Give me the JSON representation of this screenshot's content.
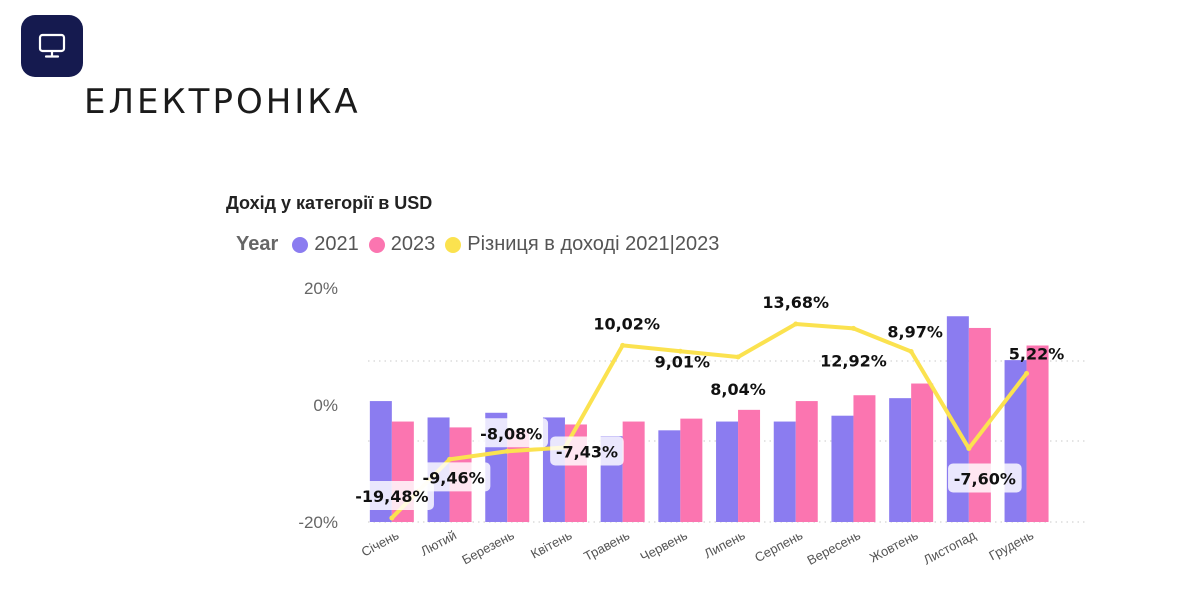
{
  "page": {
    "title": "ЕЛЕКТРОНІКА",
    "icon": "monitor-icon"
  },
  "colors": {
    "badge": "#151a4f",
    "s2021": "#8b7cf0",
    "s2023": "#fb75b0",
    "diff": "#fbe24f"
  },
  "chart_data": {
    "type": "bar",
    "title": "Дохід у категорії в USD",
    "legend_title": "Year",
    "legend_position": "top-left",
    "categories": [
      "Січень",
      "Лютий",
      "Березень",
      "Квітень",
      "Травень",
      "Червень",
      "Липень",
      "Серпень",
      "Вересень",
      "Жовтень",
      "Листопад",
      "Грудень"
    ],
    "series": [
      {
        "name": "2021",
        "type": "bar",
        "color": "#8b7cf0",
        "values": [
          0.5,
          -2.3,
          -1.5,
          -2.3,
          -5.5,
          -4.5,
          -3.0,
          -3.0,
          -2.0,
          1.0,
          15.0,
          7.5
        ]
      },
      {
        "name": "2023",
        "type": "bar",
        "color": "#fb75b0",
        "values": [
          -3.0,
          -4.0,
          -4.5,
          -3.5,
          -3.0,
          -2.5,
          -1.0,
          0.5,
          1.5,
          3.5,
          13.0,
          10.0
        ]
      },
      {
        "name": "Різниця в доході 2021|2023",
        "type": "line",
        "color": "#fbe24f",
        "values": [
          -19.48,
          -9.46,
          -8.08,
          -7.43,
          10.02,
          9.01,
          8.04,
          13.68,
          12.92,
          8.97,
          -7.6,
          5.22
        ],
        "labels": [
          "-19,48%",
          "-9,46%",
          "-8,08%",
          "-7,43%",
          "10,02%",
          "9,01%",
          "8,04%",
          "13,68%",
          "12,92%",
          "8,97%",
          "-7,60%",
          "5,22%"
        ]
      }
    ],
    "ylim": [
      -20,
      20
    ],
    "yticks": [
      20,
      0,
      -20
    ],
    "ytick_labels": [
      "20%",
      "0%",
      "-20%"
    ],
    "grid": true
  }
}
